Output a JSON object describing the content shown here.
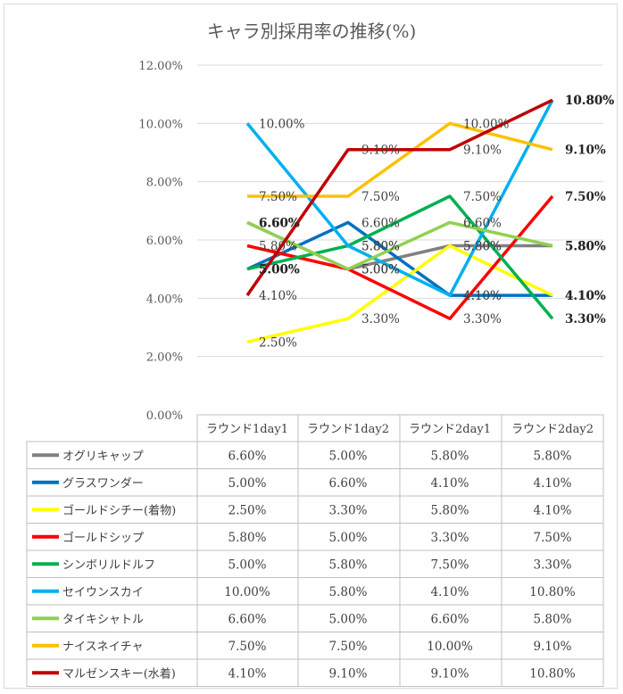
{
  "chart_data": {
    "type": "line",
    "title": "キャラ別採用率の推移(%)",
    "categories": [
      "ラウンド1day1",
      "ラウンド1day2",
      "ラウンド2day1",
      "ラウンド2day2"
    ],
    "y_ticks": [
      "0.00%",
      "2.00%",
      "4.00%",
      "6.00%",
      "8.00%",
      "10.00%",
      "12.00%"
    ],
    "ylim": [
      0,
      12
    ],
    "grid": true,
    "legend": "data-table",
    "series": [
      {
        "name": "オグリキャップ",
        "color": "#808080",
        "values": [
          6.6,
          5.0,
          5.8,
          5.8
        ],
        "labels": [
          "6.60%",
          "5.00%",
          "5.80%",
          "5.80%"
        ]
      },
      {
        "name": "グラスワンダー",
        "color": "#0070c0",
        "values": [
          5.0,
          6.6,
          4.1,
          4.1
        ],
        "labels": [
          "5.00%",
          "6.60%",
          "4.10%",
          "4.10%"
        ]
      },
      {
        "name": "ゴールドシチー(着物)",
        "color": "#ffff00",
        "values": [
          2.5,
          3.3,
          5.8,
          4.1
        ],
        "labels": [
          "2.50%",
          "3.30%",
          "5.80%",
          "4.10%"
        ]
      },
      {
        "name": "ゴールドシップ",
        "color": "#ff0000",
        "values": [
          5.8,
          5.0,
          3.3,
          7.5
        ],
        "labels": [
          "5.80%",
          "5.00%",
          "3.30%",
          "7.50%"
        ]
      },
      {
        "name": "シンボリルドルフ",
        "color": "#00b050",
        "values": [
          5.0,
          5.8,
          7.5,
          3.3
        ],
        "labels": [
          "5.00%",
          "5.80%",
          "7.50%",
          "3.30%"
        ]
      },
      {
        "name": "セイウンスカイ",
        "color": "#00b0f0",
        "values": [
          10.0,
          5.8,
          4.1,
          10.8
        ],
        "labels": [
          "10.00%",
          "5.80%",
          "4.10%",
          "10.80%"
        ]
      },
      {
        "name": "タイキシャトル",
        "color": "#92d050",
        "values": [
          6.6,
          5.0,
          6.6,
          5.8
        ],
        "labels": [
          "6.60%",
          "5.00%",
          "6.60%",
          "5.80%"
        ]
      },
      {
        "name": "ナイスネイチャ",
        "color": "#ffc000",
        "values": [
          7.5,
          7.5,
          10.0,
          9.1
        ],
        "labels": [
          "7.50%",
          "7.50%",
          "10.00%",
          "9.10%"
        ]
      },
      {
        "name": "マルゼンスキー(水着)",
        "color": "#c00000",
        "values": [
          4.1,
          9.1,
          9.1,
          10.8
        ],
        "labels": [
          "4.10%",
          "9.10%",
          "9.10%",
          "10.80%"
        ]
      }
    ]
  }
}
